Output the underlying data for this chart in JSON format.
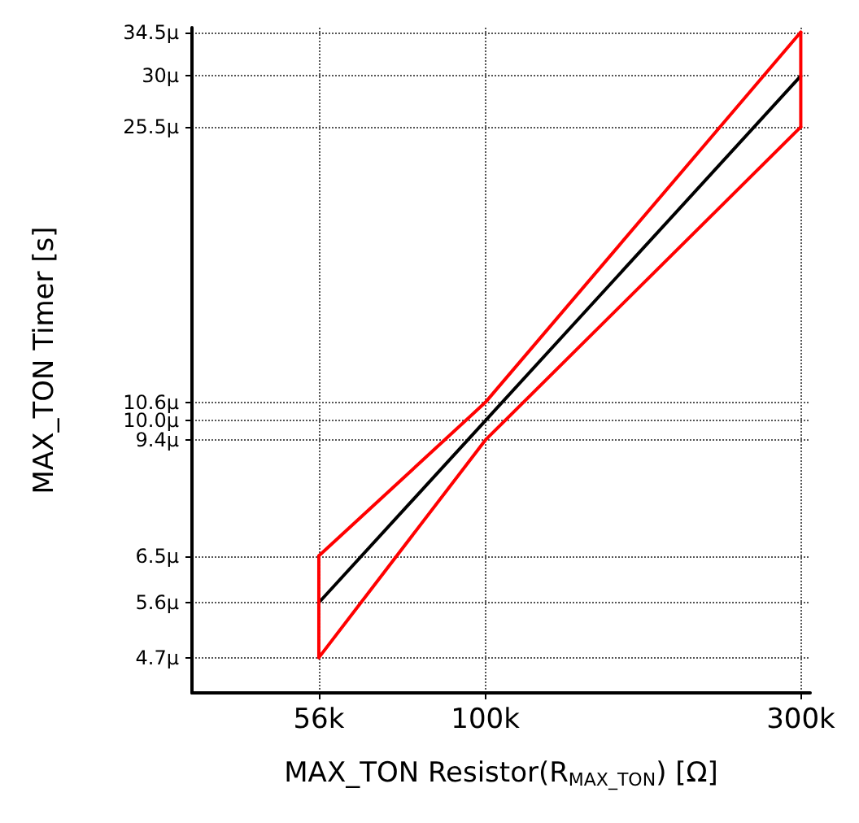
{
  "chart_data": {
    "type": "line",
    "xlabel": "MAX_TON Resistor(R$_{MAX_TON}$) [Ω]",
    "ylabel": "MAX_TON Timer [s]",
    "log": "xy",
    "marker": "none",
    "grid": true,
    "xlim": [
      36000,
      310000
    ],
    "xticks": [
      {
        "value": 56000,
        "label": "56k"
      },
      {
        "value": 100000,
        "label": "100k"
      },
      {
        "value": 300000,
        "label": "300k"
      }
    ],
    "ylim": [
      4.2,
      35
    ],
    "yticks": [
      {
        "value": 4.7,
        "label": "4.7μ"
      },
      {
        "value": 5.6,
        "label": "5.6μ"
      },
      {
        "value": 6.5,
        "label": "6.5μ"
      },
      {
        "value": 9.4,
        "label": "9.4μ"
      },
      {
        "value": 10.0,
        "label": "10.0μ"
      },
      {
        "value": 10.6,
        "label": "10.6μ"
      },
      {
        "value": 25.5,
        "label": "25.5μ"
      },
      {
        "value": 30,
        "label": "30μ"
      },
      {
        "value": 34.5,
        "label": "34.5μ"
      }
    ],
    "series": [
      {
        "color": "#ff0000",
        "x": [
          56000,
          100000,
          300000
        ],
        "values": [
          4.7,
          9.4,
          25.5
        ]
      },
      {
        "color": "#ff0000",
        "x": [
          56000,
          100000,
          300000
        ],
        "values": [
          6.5,
          10.6,
          34.5
        ]
      },
      {
        "color": "#000000",
        "x": [
          56000,
          100000,
          300000
        ],
        "values": [
          5.6,
          10.0,
          30
        ],
        "errors": [
          [
            4.7,
            6.5
          ],
          null,
          [
            25.5,
            34.5
          ]
        ]
      }
    ]
  }
}
